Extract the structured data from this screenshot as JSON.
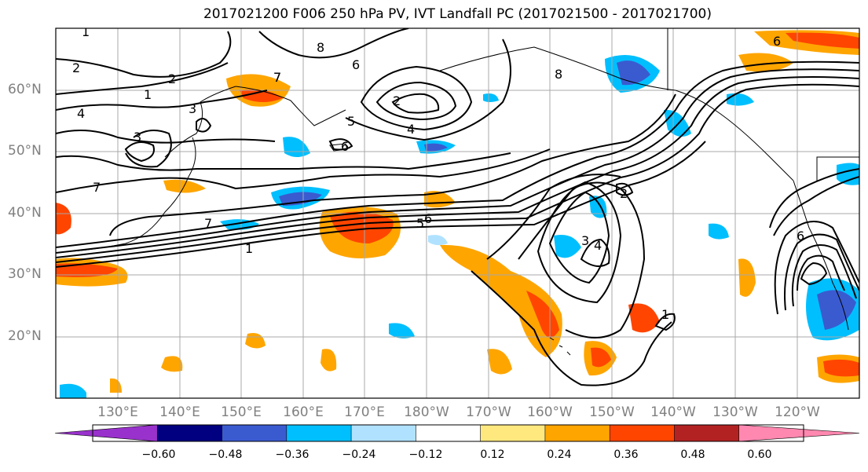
{
  "title": "2017021200 F006 250 hPa PV, IVT Landfall PC (2017021500 - 2017021700)",
  "map": {
    "lat_labels": [
      "60°N",
      "50°N",
      "40°N",
      "30°N",
      "20°N"
    ],
    "lon_labels": [
      "130°E",
      "140°E",
      "150°E",
      "160°E",
      "170°E",
      "180°W",
      "170°W",
      "160°W",
      "150°W",
      "140°W",
      "130°W",
      "120°W"
    ],
    "contour_labels": [
      "1",
      "2",
      "4",
      "8",
      "6",
      "7",
      "5",
      "3",
      "2",
      "7",
      "6",
      "5",
      "6",
      "2",
      "3",
      "4",
      "1",
      "6",
      "7",
      "4",
      "8",
      "1",
      "7",
      "1",
      "2",
      "3",
      "6"
    ]
  },
  "colorbar": {
    "tick_labels": [
      "−0.60",
      "−0.48",
      "−0.36",
      "−0.24",
      "−0.12",
      "0.12",
      "0.24",
      "0.36",
      "0.48",
      "0.60"
    ],
    "colors": [
      "#9932cc",
      "#000080",
      "#3a5bd0",
      "#00bfff",
      "#b0e2ff",
      "#ffffff",
      "#ffe97f",
      "#ffa500",
      "#ff4500",
      "#b22222",
      "#ff88b0"
    ]
  }
}
